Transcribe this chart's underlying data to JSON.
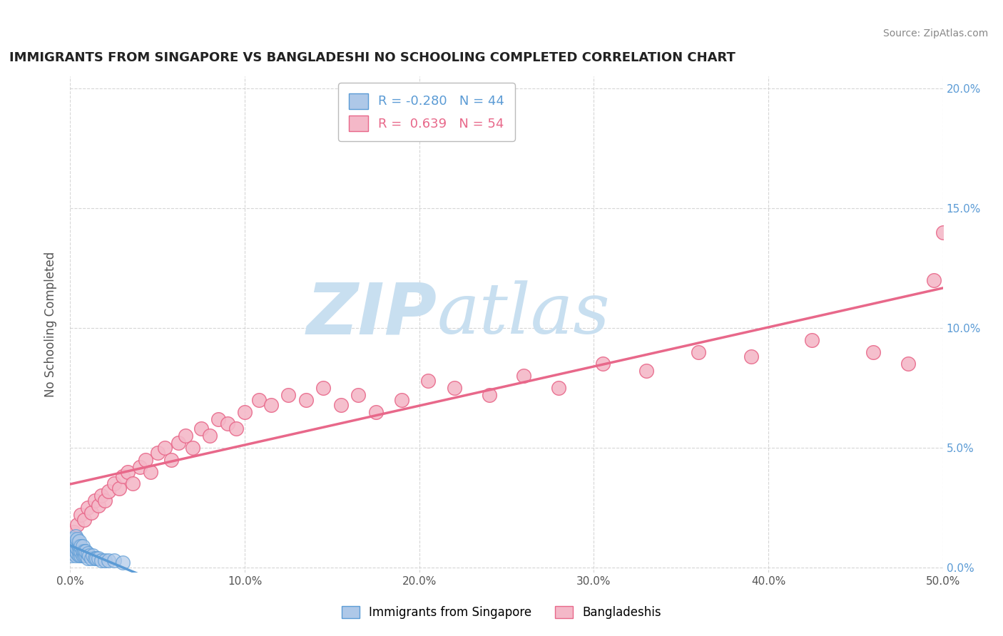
{
  "title": "IMMIGRANTS FROM SINGAPORE VS BANGLADESHI NO SCHOOLING COMPLETED CORRELATION CHART",
  "source": "Source: ZipAtlas.com",
  "ylabel": "No Schooling Completed",
  "ylabel_right_ticks": [
    "0.0%",
    "5.0%",
    "10.0%",
    "15.0%",
    "20.0%"
  ],
  "ylabel_right_vals": [
    0.0,
    0.05,
    0.1,
    0.15,
    0.2
  ],
  "xlim": [
    0.0,
    0.5
  ],
  "ylim": [
    -0.002,
    0.205
  ],
  "color_singapore": "#aec8e8",
  "color_singapore_edge": "#5b9bd5",
  "color_bangladeshi": "#f4b8c8",
  "color_bangladeshi_edge": "#e8688a",
  "color_line_singapore": "#5b9bd5",
  "color_line_bangladeshi": "#e8688a",
  "watermark_zip": "ZIP",
  "watermark_atlas": "atlas",
  "watermark_color_zip": "#c8dff0",
  "watermark_color_atlas": "#c8dff0",
  "sg_x": [
    0.0005,
    0.001,
    0.001,
    0.001,
    0.002,
    0.002,
    0.002,
    0.002,
    0.003,
    0.003,
    0.003,
    0.003,
    0.003,
    0.004,
    0.004,
    0.004,
    0.004,
    0.005,
    0.005,
    0.005,
    0.005,
    0.006,
    0.006,
    0.006,
    0.007,
    0.007,
    0.007,
    0.008,
    0.008,
    0.009,
    0.009,
    0.01,
    0.01,
    0.011,
    0.012,
    0.013,
    0.014,
    0.015,
    0.016,
    0.018,
    0.02,
    0.022,
    0.025,
    0.03
  ],
  "sg_y": [
    0.005,
    0.008,
    0.01,
    0.012,
    0.006,
    0.008,
    0.01,
    0.012,
    0.005,
    0.007,
    0.009,
    0.011,
    0.013,
    0.006,
    0.008,
    0.01,
    0.012,
    0.005,
    0.007,
    0.009,
    0.011,
    0.005,
    0.007,
    0.009,
    0.005,
    0.007,
    0.009,
    0.005,
    0.007,
    0.005,
    0.007,
    0.004,
    0.006,
    0.005,
    0.004,
    0.005,
    0.004,
    0.004,
    0.004,
    0.003,
    0.003,
    0.003,
    0.003,
    0.002
  ],
  "bd_x": [
    0.002,
    0.004,
    0.006,
    0.008,
    0.01,
    0.012,
    0.014,
    0.016,
    0.018,
    0.02,
    0.022,
    0.025,
    0.028,
    0.03,
    0.033,
    0.036,
    0.04,
    0.043,
    0.046,
    0.05,
    0.054,
    0.058,
    0.062,
    0.066,
    0.07,
    0.075,
    0.08,
    0.085,
    0.09,
    0.095,
    0.1,
    0.108,
    0.115,
    0.125,
    0.135,
    0.145,
    0.155,
    0.165,
    0.175,
    0.19,
    0.205,
    0.22,
    0.24,
    0.26,
    0.28,
    0.305,
    0.33,
    0.36,
    0.39,
    0.425,
    0.46,
    0.48,
    0.495,
    0.5
  ],
  "bd_y": [
    0.015,
    0.018,
    0.022,
    0.02,
    0.025,
    0.023,
    0.028,
    0.026,
    0.03,
    0.028,
    0.032,
    0.035,
    0.033,
    0.038,
    0.04,
    0.035,
    0.042,
    0.045,
    0.04,
    0.048,
    0.05,
    0.045,
    0.052,
    0.055,
    0.05,
    0.058,
    0.055,
    0.062,
    0.06,
    0.058,
    0.065,
    0.07,
    0.068,
    0.072,
    0.07,
    0.075,
    0.068,
    0.072,
    0.065,
    0.07,
    0.078,
    0.075,
    0.072,
    0.08,
    0.075,
    0.085,
    0.082,
    0.09,
    0.088,
    0.095,
    0.09,
    0.085,
    0.12,
    0.14
  ]
}
